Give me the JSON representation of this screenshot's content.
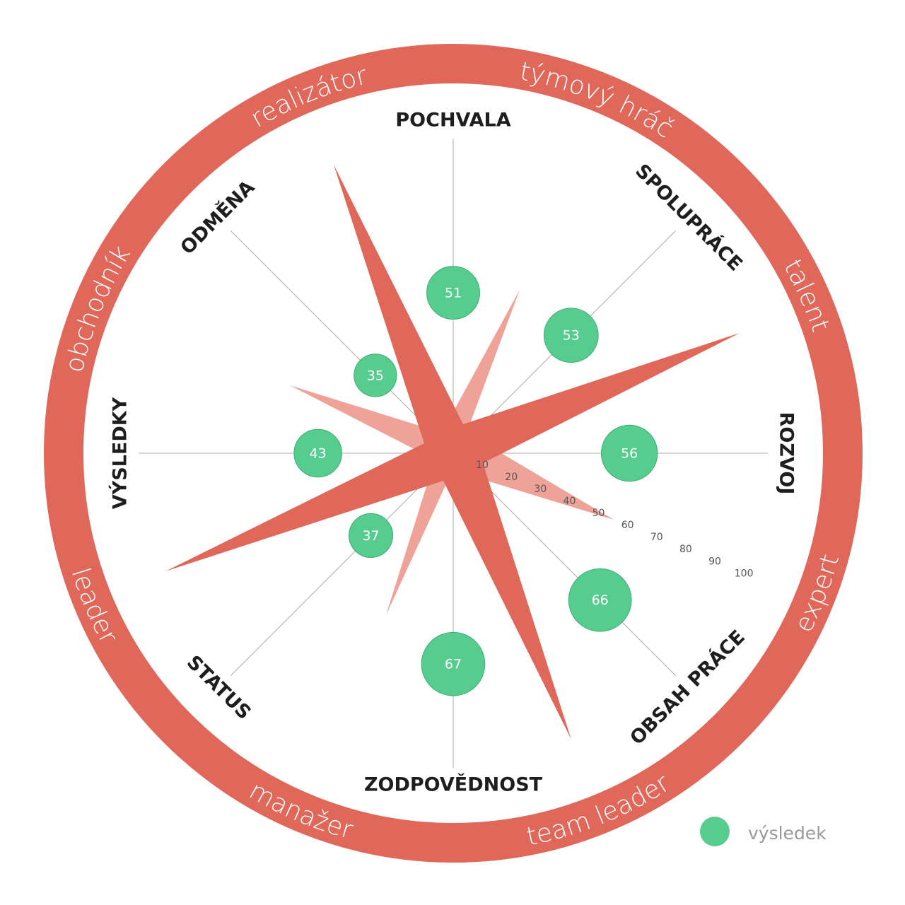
{
  "chart_data": {
    "type": "polar-bubble",
    "categories": [
      "POCHVALA",
      "SPOLUPRÁCE",
      "ROZVOJ",
      "OBSAH PRÁCE",
      "ZODPOVĚDNOST",
      "STATUS",
      "VÝSLEDKY",
      "ODMĚNA"
    ],
    "series": [
      {
        "name": "výsledek",
        "color": "#57cc8f",
        "values": [
          51,
          53,
          56,
          66,
          67,
          37,
          43,
          35
        ]
      }
    ],
    "ylim": [
      0,
      100
    ],
    "yticks": [
      10,
      20,
      30,
      40,
      50,
      60,
      70,
      80,
      90,
      100
    ],
    "ring_labels": [
      "týmový hráč",
      "talent",
      "expert",
      "team leader",
      "manažer",
      "leader",
      "obchodník",
      "realizátor"
    ]
  }
}
